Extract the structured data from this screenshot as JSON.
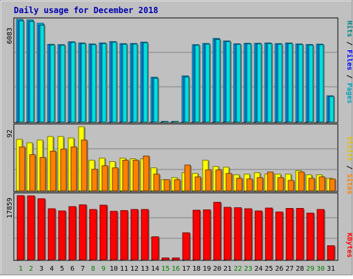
{
  "chart_data": [
    {
      "type": "bar",
      "title": "Daily usage for December 2018",
      "categories": [
        "1",
        "2",
        "3",
        "4",
        "5",
        "6",
        "7",
        "8",
        "9",
        "10",
        "11",
        "12",
        "13",
        "14",
        "15",
        "16",
        "17",
        "18",
        "19",
        "20",
        "21",
        "22",
        "23",
        "24",
        "25",
        "26",
        "27",
        "28",
        "29",
        "30",
        "31"
      ],
      "weekend_days": [
        "1",
        "2",
        "8",
        "9",
        "15",
        "16",
        "22",
        "23",
        "29",
        "30"
      ],
      "axis_label_pages": "Pages",
      "axis_label_files": "Files",
      "axis_label_hits": "Hits",
      "axis_label_sep": " / ",
      "max_label": "6083",
      "ylim": [
        0,
        6083
      ],
      "series": [
        {
          "name": "Hits",
          "color": "#00c0ff",
          "values": [
            6083,
            6050,
            5850,
            4600,
            4580,
            4750,
            4680,
            4620,
            4680,
            4760,
            4640,
            4650,
            4730,
            2650,
            30,
            30,
            2730,
            4580,
            4650,
            4950,
            4800,
            4630,
            4660,
            4660,
            4680,
            4640,
            4680,
            4620,
            4590,
            4610,
            1550
          ]
        },
        {
          "name": "Files",
          "color": "#0080ff",
          "values": [
            6000,
            5970,
            5750,
            4580,
            4560,
            4730,
            4660,
            4600,
            4660,
            4740,
            4620,
            4630,
            4710,
            2600,
            25,
            25,
            2680,
            4560,
            4630,
            4900,
            4780,
            4610,
            4640,
            4640,
            4660,
            4620,
            4660,
            4600,
            4570,
            4590,
            1520
          ]
        },
        {
          "name": "Pages",
          "color": "#00e0e0",
          "values": [
            5980,
            5950,
            5730,
            4560,
            4540,
            4710,
            4640,
            4580,
            4640,
            4720,
            4600,
            4610,
            4690,
            2580,
            20,
            20,
            2660,
            4540,
            4610,
            4880,
            4760,
            4590,
            4620,
            4620,
            4640,
            4600,
            4640,
            4580,
            4550,
            4570,
            1500
          ]
        }
      ]
    },
    {
      "type": "bar",
      "axis_label_sites": "Sites",
      "axis_label_visits": "Visits",
      "axis_label_sep": " / ",
      "max_label": "92",
      "ylim": [
        0,
        92
      ],
      "series": [
        {
          "name": "Visits",
          "color": "#ffff00",
          "values": [
            74,
            69,
            73,
            78,
            78,
            76,
            92,
            44,
            47,
            42,
            47,
            46,
            46,
            33,
            16,
            19,
            26,
            25,
            44,
            35,
            34,
            23,
            24,
            26,
            24,
            24,
            24,
            29,
            23,
            23,
            18
          ]
        },
        {
          "name": "Sites",
          "color": "#ff8000",
          "values": [
            63,
            52,
            48,
            57,
            60,
            63,
            73,
            31,
            36,
            33,
            44,
            44,
            50,
            24,
            16,
            16,
            37,
            20,
            30,
            30,
            25,
            18,
            17,
            19,
            27,
            19,
            15,
            27,
            18,
            20,
            17
          ]
        }
      ]
    },
    {
      "type": "bar",
      "axis_label_kbytes": "KBytes",
      "max_label": "17859",
      "ylim": [
        0,
        17859
      ],
      "series": [
        {
          "name": "KBytes",
          "color": "#ff0000",
          "values": [
            17859,
            17800,
            17000,
            14200,
            13600,
            14800,
            15300,
            14000,
            15200,
            13500,
            13700,
            14000,
            14000,
            6400,
            500,
            500,
            7500,
            13800,
            13900,
            16000,
            14600,
            14500,
            14200,
            13600,
            14400,
            13300,
            14300,
            14300,
            13000,
            14000,
            3900
          ]
        }
      ]
    }
  ]
}
